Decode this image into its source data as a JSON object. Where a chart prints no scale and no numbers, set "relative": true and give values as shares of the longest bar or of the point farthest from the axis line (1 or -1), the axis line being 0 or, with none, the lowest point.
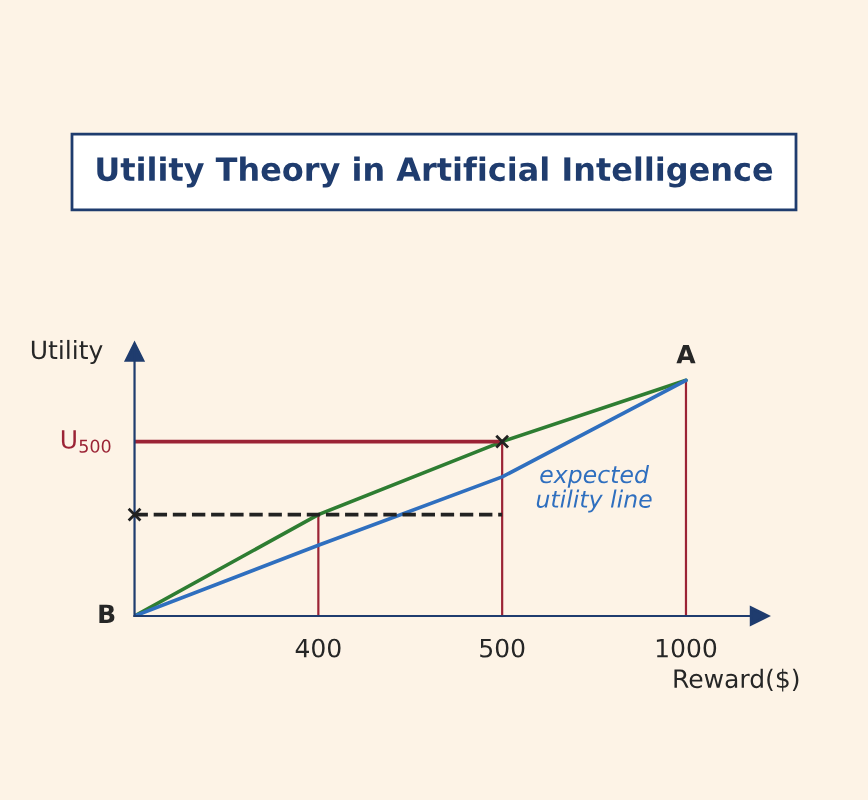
{
  "chart_data": {
    "type": "line",
    "title": "Utility Theory in Artificial Intelligence",
    "xlabel": "Reward($)",
    "ylabel": "Utility",
    "relative": true,
    "categories": [
      null,
      "400",
      "500",
      "1000"
    ],
    "series": [
      {
        "color": "#2e7d32",
        "values": [
          0,
          0.43,
          0.74,
          1
        ]
      },
      {
        "name": "expected utility line",
        "color": "#2f6fbf",
        "values": [
          0,
          0.3,
          0.59,
          1
        ]
      },
      {
        "type": "line",
        "name": "U$_{500}$",
        "color": "#9b2335",
        "values": [
          0.74,
          0.74,
          0.74,
          null
        ]
      },
      {
        "type": "line",
        "color": "#222222",
        "line_style": "dashed",
        "values": [
          0.43,
          0.43,
          0.43,
          null
        ]
      },
      {
        "type": "bar",
        "color": "#9b2335",
        "values": [
          null,
          0.43,
          0.74,
          1
        ]
      },
      {
        "type": "scatter",
        "color": "#222222",
        "marker": "cross",
        "values": [
          0.43,
          null,
          0.74,
          null
        ]
      }
    ],
    "annotations": [
      "B",
      {
        "text": "A",
        "x": "1000",
        "y": 1
      }
    ],
    "grid": false,
    "legend": false
  }
}
